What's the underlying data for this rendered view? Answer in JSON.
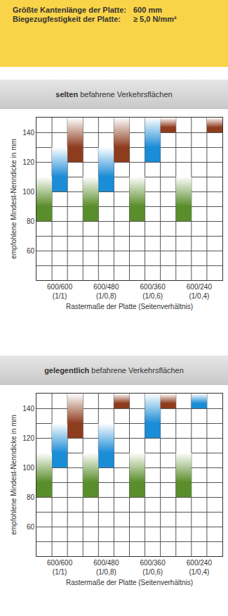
{
  "header": {
    "rows": [
      [
        "Größte Kantenlänge der Platte:",
        "600 mm"
      ],
      [
        "Biegezugfestigkeit der Platte:",
        "≥ 5,0 N/mm²"
      ]
    ]
  },
  "chart_data": [
    {
      "type": "bar",
      "title": "selten befahrene Verkehrsflächen",
      "x_label": "Rastermaße der Platte (Seitenverhältnis)",
      "y_label": "empfohlene Mindest-Nenndicke in mm",
      "categories": [
        "600/600 (1/1)",
        "600/480 (1/0,8)",
        "600/360 (1/0,6)",
        "600/240 (1/0,4)"
      ],
      "ylim": [
        40,
        150
      ],
      "yticks": [
        60,
        80,
        100,
        120,
        140
      ],
      "grid": true,
      "series": [
        {
          "color": "#5a8d2b",
          "low": [
            80,
            80,
            80,
            80
          ],
          "high": [
            110,
            110,
            110,
            110
          ]
        },
        {
          "color": "#1b8cd6",
          "low": [
            100,
            100,
            120,
            null
          ],
          "high": [
            130,
            130,
            150,
            null
          ]
        },
        {
          "color": "#8e3c1e",
          "low": [
            120,
            120,
            140,
            140
          ],
          "high": [
            150,
            150,
            150,
            150
          ]
        }
      ]
    },
    {
      "type": "bar",
      "title": "gelegentlich befahrene Verkehrsflächen",
      "x_label": "Rastermaße der Platte (Seitenverhältnis)",
      "y_label": "empfohlene Mindest-Nenndicke in mm",
      "categories": [
        "600/600 (1/1)",
        "600/480 (1/0,8)",
        "600/360 (1/0,6)",
        "600/240 (1/0,4)"
      ],
      "ylim": [
        40,
        150
      ],
      "yticks": [
        60,
        80,
        100,
        120,
        140
      ],
      "grid": true,
      "series": [
        {
          "color": "#5a8d2b",
          "low": [
            80,
            80,
            80,
            80
          ],
          "high": [
            110,
            110,
            110,
            110
          ]
        },
        {
          "color": "#1b8cd6",
          "low": [
            100,
            100,
            120,
            140
          ],
          "high": [
            130,
            130,
            150,
            150
          ]
        },
        {
          "color": "#8e3c1e",
          "low": [
            120,
            140,
            140,
            null
          ],
          "high": [
            150,
            150,
            150,
            null
          ]
        }
      ]
    }
  ]
}
